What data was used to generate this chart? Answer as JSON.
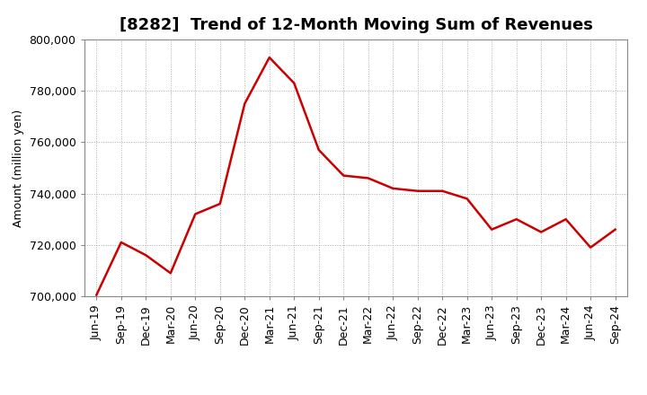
{
  "title": "[8282]  Trend of 12-Month Moving Sum of Revenues",
  "ylabel": "Amount (million yen)",
  "line_color": "#cc0000",
  "background_color": "#ffffff",
  "plot_bg_color": "#ffffff",
  "grid_color": "#999999",
  "ylim": [
    700000,
    800000
  ],
  "yticks": [
    700000,
    720000,
    740000,
    760000,
    780000,
    800000
  ],
  "x_labels": [
    "Jun-19",
    "Sep-19",
    "Dec-19",
    "Mar-20",
    "Jun-20",
    "Sep-20",
    "Dec-20",
    "Mar-21",
    "Jun-21",
    "Sep-21",
    "Dec-21",
    "Mar-22",
    "Jun-22",
    "Sep-22",
    "Dec-22",
    "Mar-23",
    "Jun-23",
    "Sep-23",
    "Dec-23",
    "Mar-24",
    "Jun-24",
    "Sep-24"
  ],
  "values": [
    700500,
    721000,
    716000,
    709000,
    732000,
    736000,
    775000,
    793000,
    783000,
    757000,
    747000,
    746000,
    742000,
    741000,
    741000,
    738000,
    726000,
    730000,
    725000,
    730000,
    719000,
    726000
  ],
  "title_fontsize": 13,
  "ylabel_fontsize": 9,
  "tick_fontsize": 9,
  "linewidth": 1.8
}
